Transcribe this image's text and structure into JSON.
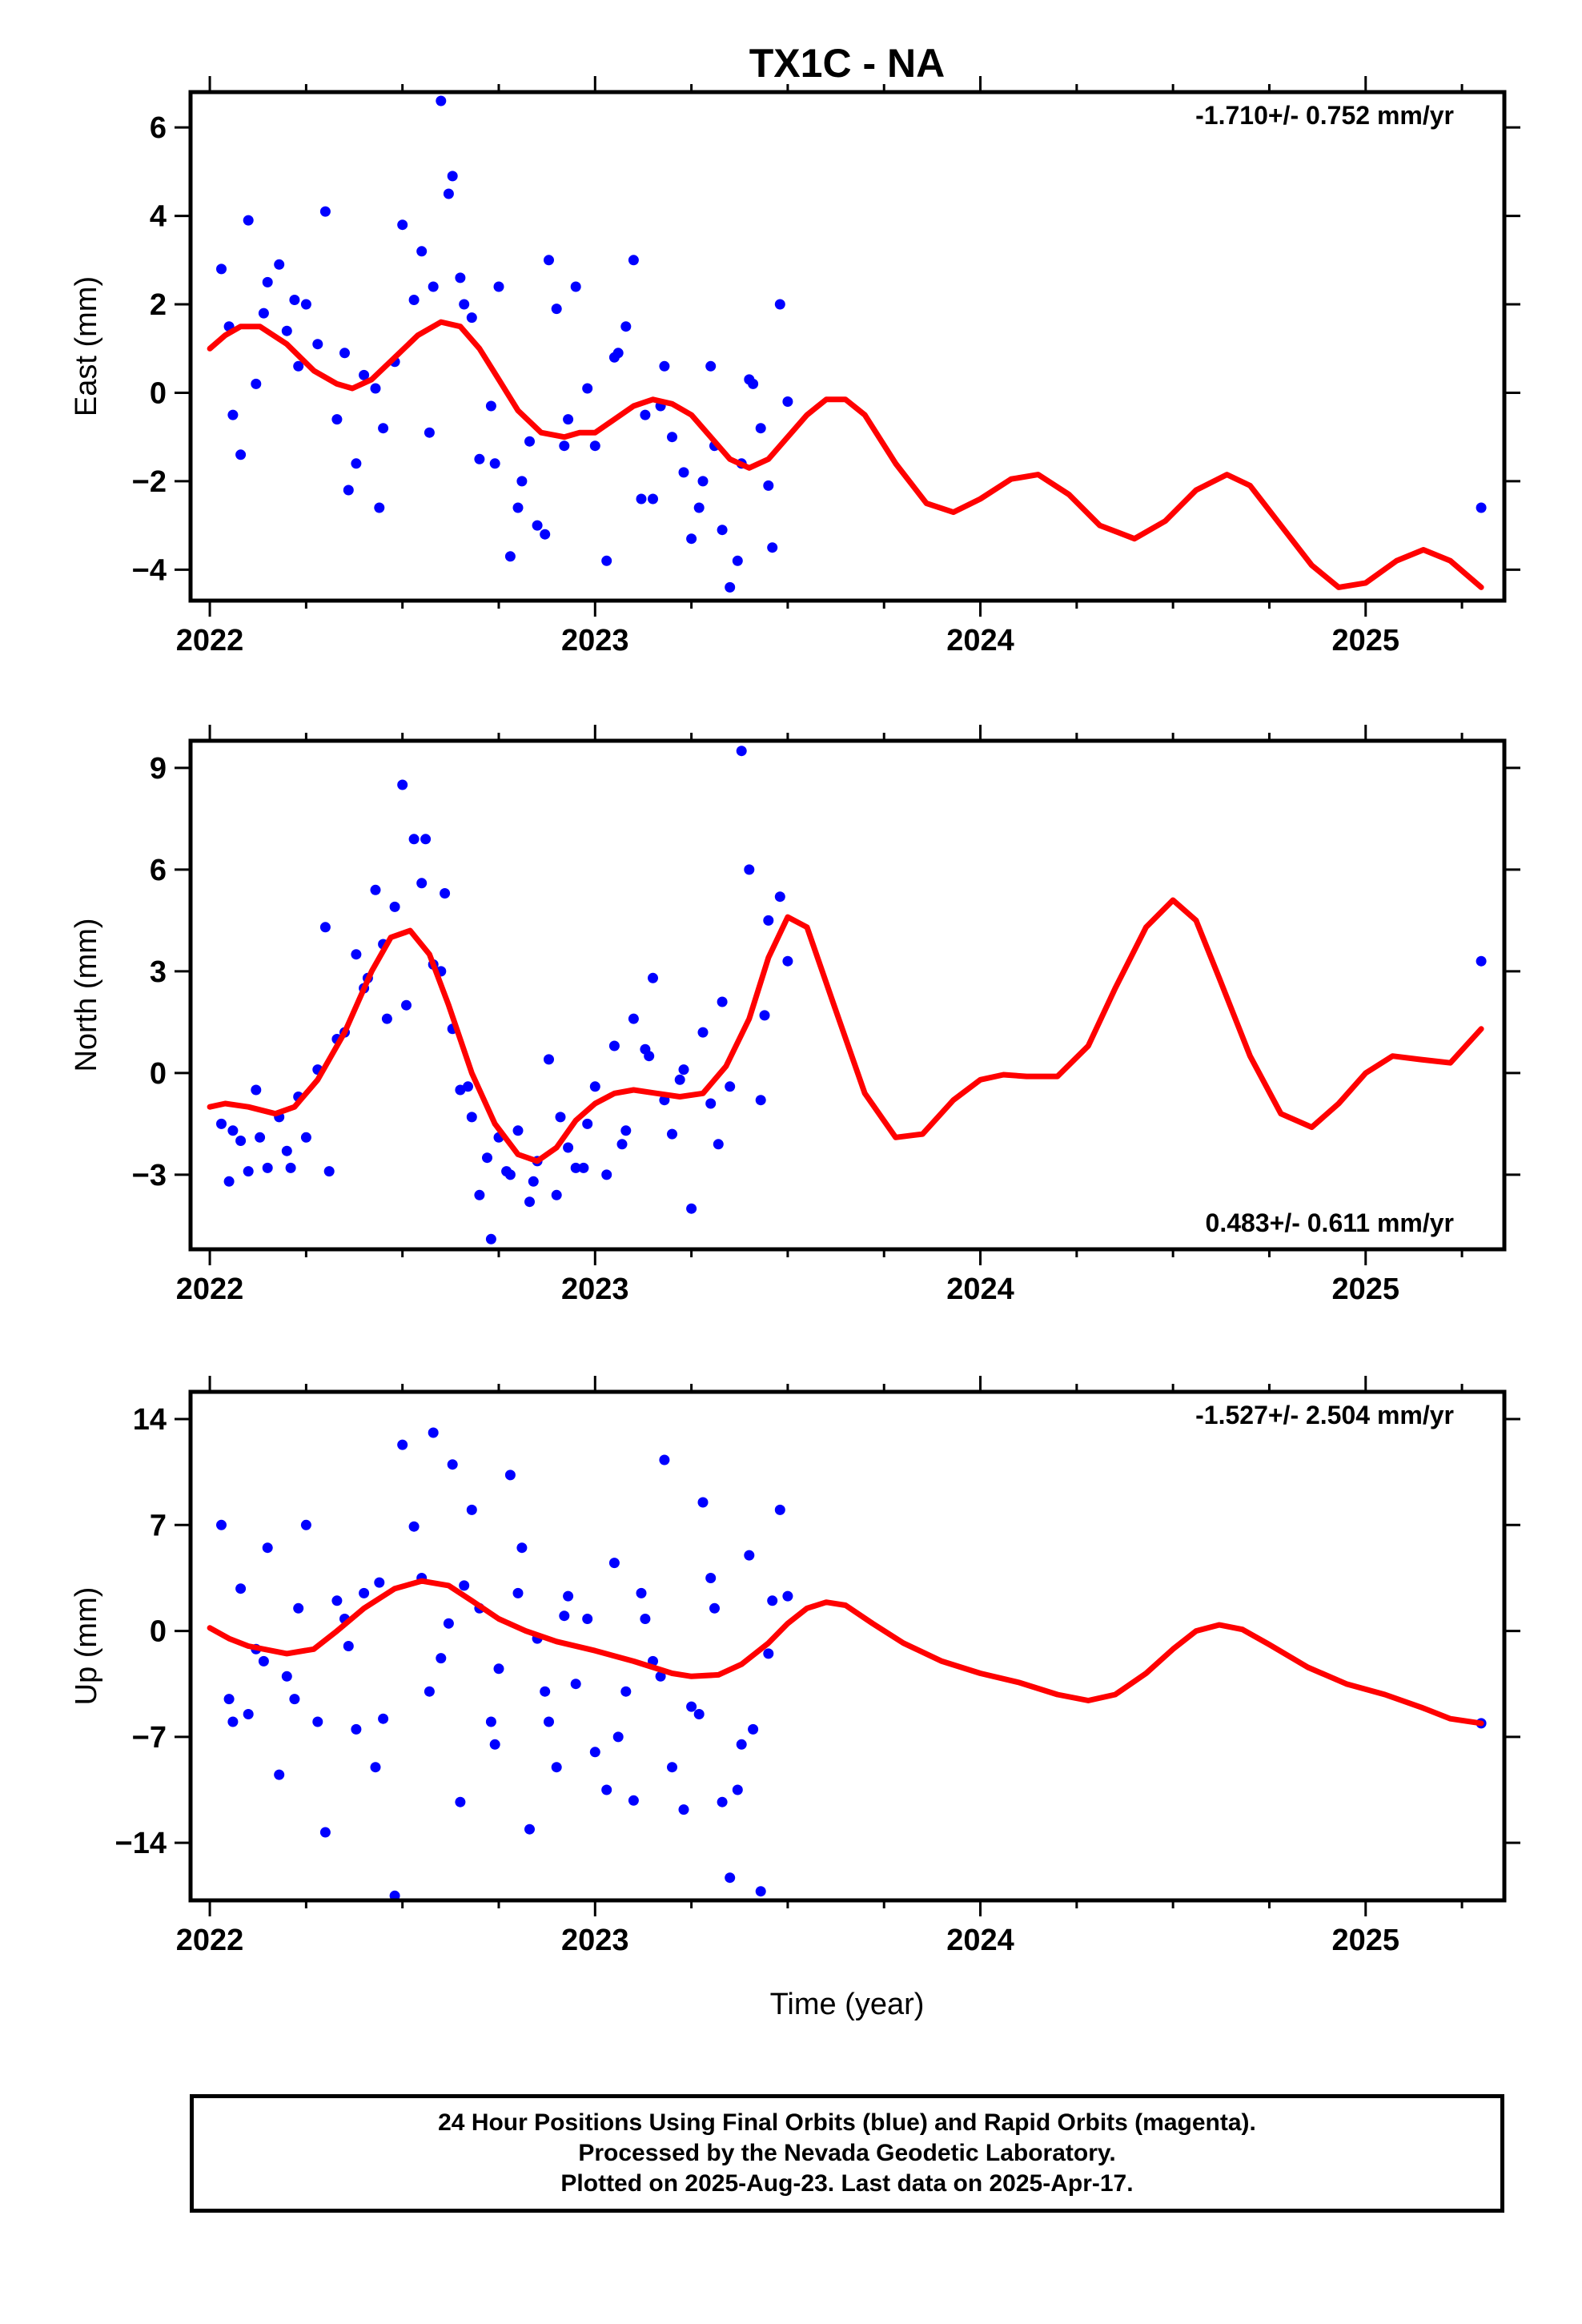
{
  "title": "TX1C - NA",
  "xlabel": "Time (year)",
  "caption": {
    "line1": "24 Hour Positions Using Final Orbits (blue) and Rapid Orbits (magenta).",
    "line2": "Processed by the Nevada Geodetic Laboratory.",
    "line3": "Plotted on 2025-Aug-23. Last data on 2025-Apr-17."
  },
  "colors": {
    "final_orbit_points": "#0000ff",
    "model_fit": "#ff0000",
    "frame": "#000000"
  },
  "chart_data": [
    {
      "type": "scatter",
      "ylabel": "East (mm)",
      "rate_label": "-1.710+/- 0.752 mm/yr",
      "rate_position": "top-right",
      "xlim": [
        2021.95,
        2025.36
      ],
      "ylim": [
        -4.7,
        6.8
      ],
      "xticks": [
        2022,
        2023,
        2024,
        2025
      ],
      "yticks": [
        -4,
        -2,
        0,
        2,
        4,
        6
      ],
      "ytick_labels": [
        "−4",
        "−2",
        "0",
        "2",
        "4",
        "6"
      ],
      "grid": false,
      "series": [
        {
          "style": "points",
          "x": [
            2022.03,
            2022.05,
            2022.08,
            2022.1,
            2022.12,
            2022.15,
            2022.18,
            2022.2,
            2022.23,
            2022.25,
            2022.28,
            2022.3,
            2022.33,
            2022.35,
            2022.38,
            2022.4,
            2022.43,
            2022.45,
            2022.48,
            2022.5,
            2022.53,
            2022.55,
            2022.58,
            2022.6,
            2022.63,
            2022.65,
            2022.68,
            2022.7,
            2022.73,
            2022.75,
            2022.78,
            2022.8,
            2022.83,
            2022.85,
            2022.88,
            2022.9,
            2022.93,
            2022.95,
            2022.98,
            2023.0,
            2023.03,
            2023.05,
            2023.08,
            2023.1,
            2023.13,
            2023.15,
            2023.18,
            2023.2,
            2023.23,
            2023.25,
            2023.28,
            2023.3,
            2023.33,
            2023.35,
            2023.38,
            2023.4,
            2023.43,
            2023.45,
            2023.48,
            2023.5,
            2022.06,
            2022.14,
            2022.22,
            2022.36,
            2022.44,
            2022.57,
            2022.62,
            2022.66,
            2022.74,
            2022.81,
            2022.87,
            2022.92,
            2023.06,
            2023.12,
            2023.17,
            2023.27,
            2023.31,
            2023.37,
            2023.41,
            2023.46,
            2025.3
          ],
          "y": [
            2.8,
            1.5,
            -1.4,
            3.9,
            0.2,
            2.5,
            2.9,
            1.4,
            0.6,
            2.0,
            1.1,
            4.1,
            -0.6,
            0.9,
            -1.6,
            0.4,
            0.1,
            -0.8,
            0.7,
            3.8,
            2.1,
            3.2,
            2.4,
            6.6,
            4.9,
            2.6,
            1.7,
            -1.5,
            -0.3,
            2.4,
            -3.7,
            -2.6,
            -1.1,
            -3.0,
            3.0,
            1.9,
            -0.6,
            2.4,
            0.1,
            -1.2,
            -3.8,
            0.8,
            1.5,
            3.0,
            -0.5,
            -2.4,
            0.6,
            -1.0,
            -1.8,
            -3.3,
            -2.0,
            0.6,
            -3.1,
            -4.4,
            -1.6,
            0.3,
            -0.8,
            -2.1,
            2.0,
            -0.2,
            -0.5,
            1.8,
            2.1,
            -2.2,
            -2.6,
            -0.9,
            4.5,
            2.0,
            -1.6,
            -2.0,
            -3.2,
            -1.2,
            0.9,
            -2.4,
            -0.3,
            -2.6,
            -1.2,
            -3.8,
            0.2,
            -3.5,
            -2.6
          ]
        },
        {
          "style": "line",
          "x": [
            2022.0,
            2022.04,
            2022.08,
            2022.13,
            2022.2,
            2022.27,
            2022.33,
            2022.37,
            2022.42,
            2022.48,
            2022.54,
            2022.6,
            2022.65,
            2022.7,
            2022.75,
            2022.8,
            2022.86,
            2022.92,
            2022.96,
            2023.0,
            2023.05,
            2023.1,
            2023.15,
            2023.2,
            2023.25,
            2023.3,
            2023.35,
            2023.4,
            2023.45,
            2023.5,
            2023.55,
            2023.6,
            2023.65,
            2023.7,
            2023.78,
            2023.86,
            2023.93,
            2024.0,
            2024.08,
            2024.15,
            2024.23,
            2024.31,
            2024.4,
            2024.48,
            2024.56,
            2024.64,
            2024.7,
            2024.78,
            2024.86,
            2024.93,
            2025.0,
            2025.08,
            2025.15,
            2025.22,
            2025.3
          ],
          "y": [
            1.0,
            1.3,
            1.5,
            1.5,
            1.1,
            0.5,
            0.2,
            0.1,
            0.3,
            0.8,
            1.3,
            1.6,
            1.5,
            1.0,
            0.3,
            -0.4,
            -0.9,
            -1.0,
            -0.9,
            -0.9,
            -0.6,
            -0.3,
            -0.15,
            -0.25,
            -0.5,
            -1.0,
            -1.5,
            -1.7,
            -1.5,
            -1.0,
            -0.5,
            -0.15,
            -0.15,
            -0.5,
            -1.6,
            -2.5,
            -2.7,
            -2.4,
            -1.95,
            -1.85,
            -2.3,
            -3.0,
            -3.3,
            -2.9,
            -2.2,
            -1.85,
            -2.1,
            -3.0,
            -3.9,
            -4.4,
            -4.3,
            -3.8,
            -3.55,
            -3.8,
            -4.4
          ]
        }
      ]
    },
    {
      "type": "scatter",
      "ylabel": "North (mm)",
      "rate_label": "0.483+/- 0.611 mm/yr",
      "rate_position": "bottom-right",
      "xlim": [
        2021.95,
        2025.36
      ],
      "ylim": [
        -5.2,
        9.8
      ],
      "xticks": [
        2022,
        2023,
        2024,
        2025
      ],
      "yticks": [
        -3,
        0,
        3,
        6,
        9
      ],
      "ytick_labels": [
        "−3",
        "0",
        "3",
        "6",
        "9"
      ],
      "grid": false,
      "series": [
        {
          "style": "points",
          "x": [
            2022.03,
            2022.05,
            2022.08,
            2022.1,
            2022.12,
            2022.15,
            2022.18,
            2022.2,
            2022.23,
            2022.25,
            2022.28,
            2022.3,
            2022.33,
            2022.35,
            2022.38,
            2022.4,
            2022.43,
            2022.45,
            2022.48,
            2022.5,
            2022.53,
            2022.55,
            2022.58,
            2022.6,
            2022.63,
            2022.65,
            2022.68,
            2022.7,
            2022.73,
            2022.75,
            2022.78,
            2022.8,
            2022.83,
            2022.85,
            2022.88,
            2022.9,
            2022.93,
            2022.95,
            2022.98,
            2023.0,
            2023.03,
            2023.05,
            2023.08,
            2023.1,
            2023.13,
            2023.15,
            2023.18,
            2023.2,
            2023.23,
            2023.25,
            2023.28,
            2023.3,
            2023.33,
            2023.35,
            2023.38,
            2023.4,
            2023.43,
            2023.45,
            2023.48,
            2023.5,
            2022.06,
            2022.13,
            2022.21,
            2022.31,
            2022.41,
            2022.46,
            2022.51,
            2022.56,
            2022.61,
            2022.67,
            2022.72,
            2022.77,
            2022.84,
            2022.91,
            2022.97,
            2023.07,
            2023.14,
            2023.22,
            2023.32,
            2023.44,
            2025.3
          ],
          "y": [
            -1.5,
            -3.2,
            -2.0,
            -2.9,
            -0.5,
            -2.8,
            -1.3,
            -2.3,
            -0.7,
            -1.9,
            0.1,
            4.3,
            1.0,
            1.2,
            3.5,
            2.5,
            5.4,
            3.8,
            4.9,
            8.5,
            6.9,
            5.6,
            3.2,
            3.0,
            1.3,
            -0.5,
            -1.3,
            -3.6,
            -4.9,
            -1.9,
            -3.0,
            -1.7,
            -3.8,
            -2.6,
            0.4,
            -3.6,
            -2.2,
            -2.8,
            -1.5,
            -0.4,
            -3.0,
            0.8,
            -1.7,
            1.6,
            0.7,
            2.8,
            -0.8,
            -1.8,
            0.1,
            -4.0,
            1.2,
            -0.9,
            2.1,
            -0.4,
            9.5,
            6.0,
            -0.8,
            4.5,
            5.2,
            3.3,
            -1.7,
            -1.9,
            -2.8,
            -2.9,
            2.8,
            1.6,
            2.0,
            6.9,
            5.3,
            -0.4,
            -2.5,
            -2.9,
            -3.2,
            -1.3,
            -2.8,
            -2.1,
            0.5,
            -0.2,
            -2.1,
            1.7,
            3.3
          ]
        },
        {
          "style": "line",
          "x": [
            2022.0,
            2022.04,
            2022.1,
            2022.17,
            2022.22,
            2022.28,
            2022.35,
            2022.42,
            2022.47,
            2022.52,
            2022.57,
            2022.62,
            2022.68,
            2022.74,
            2022.8,
            2022.85,
            2022.9,
            2022.95,
            2023.0,
            2023.05,
            2023.1,
            2023.16,
            2023.22,
            2023.28,
            2023.34,
            2023.4,
            2023.45,
            2023.5,
            2023.55,
            2023.62,
            2023.7,
            2023.78,
            2023.85,
            2023.93,
            2024.0,
            2024.06,
            2024.12,
            2024.2,
            2024.28,
            2024.35,
            2024.43,
            2024.5,
            2024.56,
            2024.62,
            2024.7,
            2024.78,
            2024.86,
            2024.93,
            2025.0,
            2025.07,
            2025.14,
            2025.22,
            2025.3
          ],
          "y": [
            -1.0,
            -0.9,
            -1.0,
            -1.2,
            -1.0,
            -0.2,
            1.2,
            3.0,
            4.0,
            4.2,
            3.5,
            2.0,
            0.0,
            -1.5,
            -2.4,
            -2.6,
            -2.2,
            -1.4,
            -0.9,
            -0.6,
            -0.5,
            -0.6,
            -0.7,
            -0.6,
            0.2,
            1.6,
            3.4,
            4.6,
            4.3,
            2.0,
            -0.6,
            -1.9,
            -1.8,
            -0.8,
            -0.2,
            -0.05,
            -0.1,
            -0.1,
            0.8,
            2.5,
            4.3,
            5.1,
            4.5,
            2.8,
            0.5,
            -1.2,
            -1.6,
            -0.9,
            0.0,
            0.5,
            0.4,
            0.3,
            1.3
          ]
        }
      ]
    },
    {
      "type": "scatter",
      "ylabel": "Up (mm)",
      "rate_label": "-1.527+/- 2.504 mm/yr",
      "rate_position": "top-right",
      "xlim": [
        2021.95,
        2025.36
      ],
      "ylim": [
        -17.8,
        15.8
      ],
      "xticks": [
        2022,
        2023,
        2024,
        2025
      ],
      "yticks": [
        -14,
        -7,
        0,
        7,
        14
      ],
      "ytick_labels": [
        "−14",
        "−7",
        "0",
        "7",
        "14"
      ],
      "grid": false,
      "series": [
        {
          "style": "points",
          "x": [
            2022.03,
            2022.05,
            2022.08,
            2022.1,
            2022.12,
            2022.15,
            2022.18,
            2022.2,
            2022.23,
            2022.25,
            2022.28,
            2022.3,
            2022.33,
            2022.35,
            2022.38,
            2022.4,
            2022.43,
            2022.45,
            2022.48,
            2022.5,
            2022.53,
            2022.55,
            2022.58,
            2022.6,
            2022.63,
            2022.65,
            2022.68,
            2022.7,
            2022.73,
            2022.75,
            2022.78,
            2022.8,
            2022.83,
            2022.85,
            2022.88,
            2022.9,
            2022.93,
            2022.95,
            2022.98,
            2023.0,
            2023.03,
            2023.05,
            2023.08,
            2023.1,
            2023.13,
            2023.15,
            2023.18,
            2023.2,
            2023.23,
            2023.25,
            2023.28,
            2023.3,
            2023.33,
            2023.35,
            2023.38,
            2023.4,
            2023.43,
            2023.45,
            2023.48,
            2023.5,
            2022.06,
            2022.14,
            2022.22,
            2022.36,
            2022.44,
            2022.57,
            2022.62,
            2022.66,
            2022.74,
            2022.81,
            2022.87,
            2022.92,
            2023.06,
            2023.12,
            2023.17,
            2023.27,
            2023.31,
            2023.37,
            2023.41,
            2023.46,
            2025.3
          ],
          "y": [
            7.0,
            -4.5,
            2.8,
            -5.5,
            -1.2,
            5.5,
            -9.5,
            -3.0,
            1.5,
            7.0,
            -6.0,
            -13.3,
            2.0,
            0.8,
            -6.5,
            2.5,
            -9.0,
            -5.8,
            -17.5,
            12.3,
            6.9,
            3.5,
            13.1,
            -1.8,
            11.0,
            -11.3,
            8.0,
            1.5,
            -6.0,
            -2.5,
            10.3,
            2.5,
            -13.1,
            -0.5,
            -6.0,
            -9.0,
            2.3,
            -3.5,
            0.8,
            -8.0,
            -10.5,
            4.5,
            -4.0,
            -11.2,
            0.8,
            -2.0,
            11.3,
            -9.0,
            -11.8,
            -5.0,
            8.5,
            3.5,
            -11.3,
            -16.3,
            -7.5,
            5.0,
            -17.2,
            -1.5,
            8.0,
            2.3,
            -6.0,
            -2.0,
            -4.5,
            -1.0,
            3.2,
            -4.0,
            0.5,
            3.0,
            -7.5,
            5.5,
            -4.0,
            1.0,
            -7.0,
            2.5,
            -3.0,
            -5.5,
            1.5,
            -10.5,
            -6.5,
            2.0,
            -6.1
          ]
        },
        {
          "style": "line",
          "x": [
            2022.0,
            2022.05,
            2022.1,
            2022.2,
            2022.27,
            2022.33,
            2022.4,
            2022.48,
            2022.55,
            2022.62,
            2022.68,
            2022.75,
            2022.82,
            2022.9,
            2023.0,
            2023.1,
            2023.2,
            2023.25,
            2023.32,
            2023.38,
            2023.45,
            2023.5,
            2023.55,
            2023.6,
            2023.65,
            2023.72,
            2023.8,
            2023.9,
            2024.0,
            2024.1,
            2024.2,
            2024.28,
            2024.35,
            2024.43,
            2024.5,
            2024.56,
            2024.62,
            2024.68,
            2024.75,
            2024.85,
            2024.95,
            2025.05,
            2025.15,
            2025.22,
            2025.3
          ],
          "y": [
            0.2,
            -0.5,
            -1.0,
            -1.5,
            -1.2,
            0.0,
            1.5,
            2.8,
            3.3,
            3.0,
            2.0,
            0.8,
            0.0,
            -0.7,
            -1.3,
            -2.0,
            -2.8,
            -3.0,
            -2.9,
            -2.2,
            -0.8,
            0.5,
            1.5,
            1.9,
            1.7,
            0.5,
            -0.8,
            -2.0,
            -2.8,
            -3.4,
            -4.2,
            -4.6,
            -4.2,
            -2.8,
            -1.2,
            0.0,
            0.4,
            0.1,
            -0.9,
            -2.4,
            -3.5,
            -4.2,
            -5.1,
            -5.8,
            -6.1
          ]
        }
      ]
    }
  ]
}
